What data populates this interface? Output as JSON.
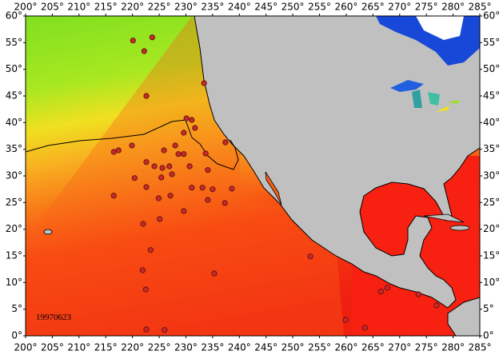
{
  "map": {
    "date_label": "19970623",
    "xlim": [
      200,
      285
    ],
    "ylim": [
      0,
      60
    ],
    "xticks": [
      {
        "value": 200,
        "label": "200°"
      },
      {
        "value": 205,
        "label": "205°"
      },
      {
        "value": 210,
        "label": "210°"
      },
      {
        "value": 215,
        "label": "215°"
      },
      {
        "value": 220,
        "label": "220°"
      },
      {
        "value": 225,
        "label": "225°"
      },
      {
        "value": 230,
        "label": "230°"
      },
      {
        "value": 235,
        "label": "235°"
      },
      {
        "value": 240,
        "label": "240°"
      },
      {
        "value": 245,
        "label": "245°"
      },
      {
        "value": 250,
        "label": "250°"
      },
      {
        "value": 255,
        "label": "255°"
      },
      {
        "value": 260,
        "label": "260°"
      },
      {
        "value": 265,
        "label": "265°"
      },
      {
        "value": 270,
        "label": "270°"
      },
      {
        "value": 275,
        "label": "275°"
      },
      {
        "value": 280,
        "label": "280°"
      },
      {
        "value": 285,
        "label": "285°"
      }
    ],
    "yticks": [
      {
        "value": 0,
        "label": "0°"
      },
      {
        "value": 5,
        "label": "5°"
      },
      {
        "value": 10,
        "label": "10°"
      },
      {
        "value": 15,
        "label": "15°"
      },
      {
        "value": 20,
        "label": "20°"
      },
      {
        "value": 25,
        "label": "25°"
      },
      {
        "value": 30,
        "label": "30°"
      },
      {
        "value": 35,
        "label": "35°"
      },
      {
        "value": 40,
        "label": "40°"
      },
      {
        "value": 45,
        "label": "45°"
      },
      {
        "value": 50,
        "label": "50°"
      },
      {
        "value": 55,
        "label": "55°"
      },
      {
        "value": 60,
        "label": "60°"
      }
    ],
    "stations": [
      {
        "lon": 220.1,
        "lat": 55.4
      },
      {
        "lon": 223.7,
        "lat": 56.0
      },
      {
        "lon": 222.2,
        "lat": 53.4
      },
      {
        "lon": 222.6,
        "lat": 45.0
      },
      {
        "lon": 233.4,
        "lat": 47.4
      },
      {
        "lon": 230.1,
        "lat": 40.8
      },
      {
        "lon": 231.1,
        "lat": 40.5
      },
      {
        "lon": 231.7,
        "lat": 39.0
      },
      {
        "lon": 237.4,
        "lat": 36.3
      },
      {
        "lon": 229.6,
        "lat": 38.1
      },
      {
        "lon": 228.0,
        "lat": 35.7
      },
      {
        "lon": 219.9,
        "lat": 35.7
      },
      {
        "lon": 216.5,
        "lat": 34.5
      },
      {
        "lon": 217.4,
        "lat": 34.8
      },
      {
        "lon": 228.6,
        "lat": 34.1
      },
      {
        "lon": 229.6,
        "lat": 34.1
      },
      {
        "lon": 233.7,
        "lat": 34.2
      },
      {
        "lon": 225.9,
        "lat": 34.8
      },
      {
        "lon": 222.6,
        "lat": 32.6
      },
      {
        "lon": 224.1,
        "lat": 31.8
      },
      {
        "lon": 225.6,
        "lat": 31.5
      },
      {
        "lon": 226.9,
        "lat": 31.8
      },
      {
        "lon": 230.7,
        "lat": 31.8
      },
      {
        "lon": 234.1,
        "lat": 31.1
      },
      {
        "lon": 220.4,
        "lat": 29.6
      },
      {
        "lon": 225.4,
        "lat": 29.7
      },
      {
        "lon": 227.4,
        "lat": 30.3
      },
      {
        "lon": 231.1,
        "lat": 27.8
      },
      {
        "lon": 233.1,
        "lat": 27.8
      },
      {
        "lon": 235.0,
        "lat": 27.5
      },
      {
        "lon": 222.6,
        "lat": 27.9
      },
      {
        "lon": 224.9,
        "lat": 25.8
      },
      {
        "lon": 227.1,
        "lat": 26.3
      },
      {
        "lon": 216.5,
        "lat": 26.3
      },
      {
        "lon": 238.6,
        "lat": 27.6
      },
      {
        "lon": 229.6,
        "lat": 23.4
      },
      {
        "lon": 234.1,
        "lat": 25.5
      },
      {
        "lon": 237.3,
        "lat": 24.9
      },
      {
        "lon": 225.1,
        "lat": 21.9
      },
      {
        "lon": 222.0,
        "lat": 21.0
      },
      {
        "lon": 223.4,
        "lat": 16.1
      },
      {
        "lon": 235.3,
        "lat": 11.7
      },
      {
        "lon": 221.9,
        "lat": 12.3
      },
      {
        "lon": 222.5,
        "lat": 8.7
      },
      {
        "lon": 253.3,
        "lat": 14.9
      },
      {
        "lon": 266.5,
        "lat": 8.3
      },
      {
        "lon": 267.7,
        "lat": 9.0
      },
      {
        "lon": 273.5,
        "lat": 7.8
      },
      {
        "lon": 276.9,
        "lat": 5.7
      },
      {
        "lon": 259.9,
        "lat": 3.0
      },
      {
        "lon": 263.5,
        "lat": 1.5
      },
      {
        "lon": 222.6,
        "lat": 1.2
      },
      {
        "lon": 226.0,
        "lat": 1.1
      }
    ]
  }
}
